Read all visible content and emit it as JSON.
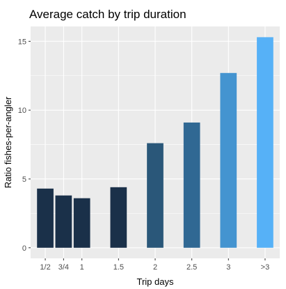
{
  "chart_data": {
    "type": "bar",
    "title": "Average catch by trip duration",
    "xlabel": "Trip days",
    "ylabel": "Ratio fishes-per-angler",
    "x": [
      0.5,
      0.75,
      1,
      1.5,
      2,
      2.5,
      3,
      3.5
    ],
    "categories": [
      "1/2",
      "3/4",
      "1",
      "1.5",
      "2",
      "2.5",
      "3",
      ">3"
    ],
    "values": [
      4.3,
      3.8,
      3.6,
      4.4,
      7.6,
      9.1,
      12.7,
      15.3
    ],
    "colors": [
      "#1a3049",
      "#1a3049",
      "#1a3049",
      "#1a3049",
      "#2a5779",
      "#306893",
      "#4494d0",
      "#56b1f7"
    ],
    "xlim": [
      0.3,
      3.7
    ],
    "ylim": [
      -0.77,
      16.08
    ],
    "y_ticks": [
      0,
      5,
      10,
      15
    ],
    "y_tick_labels": [
      "0",
      "5",
      "10",
      "15"
    ],
    "grid": true,
    "legend": "none",
    "panel_background": "#ebebeb",
    "grid_color": "#ffffff"
  }
}
